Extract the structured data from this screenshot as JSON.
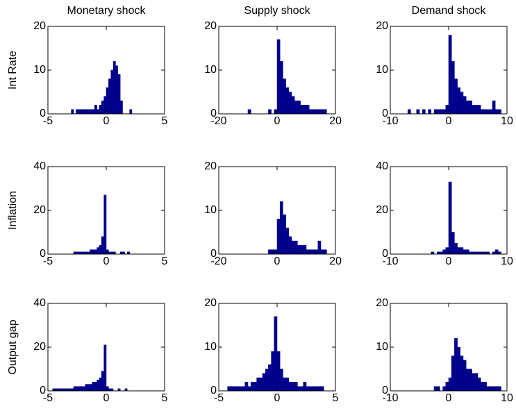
{
  "chart_data": [
    {
      "type": "histogram",
      "title": "Monetary shock",
      "ylabel": "Int Rate",
      "color": "#00008b",
      "bins": [
        -3,
        -2.8,
        -2.6,
        -2.4,
        -2.2,
        -2,
        -1.8,
        -1.6,
        -1.4,
        -1.2,
        -1,
        -0.8,
        -0.6,
        -0.4,
        -0.2,
        0,
        0.2,
        0.4,
        0.6,
        0.8,
        1,
        1.2,
        1.4,
        1.6,
        1.8,
        2,
        2.2,
        2.4
      ],
      "values": [
        1,
        0,
        1,
        1,
        1,
        1,
        1,
        1,
        1,
        1,
        2,
        1,
        2,
        3,
        4,
        6,
        8,
        10,
        12,
        11,
        9,
        3,
        0,
        0,
        0,
        1,
        0
      ],
      "xlim": [
        -5,
        5
      ],
      "xticks": [
        -5,
        0,
        5
      ],
      "ylim": [
        0,
        20
      ],
      "yticks": [
        0,
        10,
        20
      ]
    },
    {
      "type": "histogram",
      "title": "Supply shock",
      "color": "#00008b",
      "bins": [
        -10,
        -9,
        -8,
        -7,
        -6,
        -5,
        -4,
        -3,
        -2,
        -1,
        0,
        1,
        2,
        3,
        4,
        5,
        6,
        7,
        8,
        9,
        10,
        11,
        12,
        13,
        14,
        15,
        16,
        17
      ],
      "values": [
        1,
        0,
        0,
        0,
        0,
        0,
        0,
        1,
        0,
        1,
        17,
        12,
        8,
        6,
        5,
        4,
        3,
        3,
        2,
        2,
        2,
        1,
        1,
        1,
        1,
        1,
        1
      ],
      "xlim": [
        -20,
        20
      ],
      "xticks": [
        -20,
        0,
        20
      ],
      "ylim": [
        0,
        20
      ],
      "yticks": [
        0,
        10,
        20
      ]
    },
    {
      "type": "histogram",
      "title": "Demand shock",
      "color": "#00008b",
      "bins": [
        -7,
        -6.5,
        -6,
        -5.5,
        -5,
        -4.5,
        -4,
        -3.5,
        -3,
        -2.5,
        -2,
        -1.5,
        -1,
        -0.5,
        0,
        0.5,
        1,
        1.5,
        2,
        2.5,
        3,
        3.5,
        4,
        4.5,
        5,
        5.5,
        6,
        6.5,
        7,
        7.5,
        8,
        8.5,
        9
      ],
      "values": [
        1,
        0,
        0,
        1,
        0,
        1,
        0,
        1,
        0,
        1,
        1,
        1,
        1,
        2,
        18,
        12,
        8,
        6,
        5,
        4,
        3,
        3,
        2,
        2,
        2,
        1,
        1,
        1,
        1,
        3,
        1,
        1
      ],
      "xlim": [
        -10,
        10
      ],
      "xticks": [
        -10,
        0,
        10
      ],
      "ylim": [
        0,
        20
      ],
      "yticks": [
        0,
        10,
        20
      ]
    },
    {
      "type": "histogram",
      "ylabel": "Inflation",
      "color": "#00008b",
      "bins": [
        -2.8,
        -2.6,
        -2.4,
        -2.2,
        -2,
        -1.8,
        -1.6,
        -1.4,
        -1.2,
        -1,
        -0.8,
        -0.6,
        -0.4,
        -0.2,
        0,
        0.2,
        0.4,
        0.6,
        0.8,
        1,
        1.2,
        1.4,
        1.6,
        1.8,
        2
      ],
      "values": [
        1,
        1,
        1,
        1,
        1,
        1,
        1,
        2,
        2,
        2,
        3,
        4,
        8,
        27,
        2,
        1,
        1,
        1,
        0,
        0,
        1,
        1,
        0,
        1
      ],
      "xlim": [
        -5,
        5
      ],
      "xticks": [
        -5,
        0,
        5
      ],
      "ylim": [
        0,
        40
      ],
      "yticks": [
        0,
        20,
        40
      ]
    },
    {
      "type": "histogram",
      "color": "#00008b",
      "bins": [
        -3,
        -2,
        -1,
        0,
        1,
        2,
        3,
        4,
        5,
        6,
        7,
        8,
        9,
        10,
        11,
        12,
        13,
        14,
        15,
        16,
        17
      ],
      "values": [
        1,
        1,
        1,
        8,
        12,
        9,
        6,
        4,
        3,
        3,
        2,
        2,
        2,
        1,
        1,
        1,
        1,
        3,
        1,
        1
      ],
      "xlim": [
        -20,
        20
      ],
      "xticks": [
        -20,
        0,
        20
      ],
      "ylim": [
        0,
        20
      ],
      "yticks": [
        0,
        10,
        20
      ]
    },
    {
      "type": "histogram",
      "color": "#00008b",
      "bins": [
        -3,
        -2.5,
        -2,
        -1.5,
        -1,
        -0.5,
        0,
        0.5,
        1,
        1.5,
        2,
        2.5,
        3,
        3.5,
        4,
        4.5,
        5,
        5.5,
        6,
        6.5,
        7,
        7.5,
        8,
        8.5,
        9
      ],
      "values": [
        1,
        0,
        1,
        1,
        2,
        3,
        33,
        10,
        5,
        3,
        3,
        2,
        2,
        1,
        1,
        1,
        1,
        1,
        1,
        1,
        0,
        1,
        2,
        1
      ],
      "xlim": [
        -10,
        10
      ],
      "xticks": [
        -10,
        0,
        10
      ],
      "ylim": [
        0,
        40
      ],
      "yticks": [
        0,
        20,
        40
      ]
    },
    {
      "type": "histogram",
      "ylabel": "Output gap",
      "color": "#00008b",
      "bins": [
        -4.6,
        -4.4,
        -4.2,
        -4,
        -3.8,
        -3.6,
        -3.4,
        -3.2,
        -3,
        -2.8,
        -2.6,
        -2.4,
        -2.2,
        -2,
        -1.8,
        -1.6,
        -1.4,
        -1.2,
        -1,
        -0.8,
        -0.6,
        -0.4,
        -0.2,
        0,
        0.2,
        0.4,
        0.6,
        0.8,
        1,
        1.2,
        1.4,
        1.6,
        1.8,
        2
      ],
      "values": [
        1,
        1,
        1,
        1,
        1,
        1,
        1,
        1,
        1,
        2,
        2,
        2,
        2,
        2,
        3,
        3,
        3,
        4,
        4,
        5,
        6,
        9,
        21,
        2,
        1,
        1,
        0,
        0,
        1,
        0,
        0,
        1,
        0
      ],
      "xlim": [
        -5,
        5
      ],
      "xticks": [
        -5,
        0,
        5
      ],
      "ylim": [
        0,
        40
      ],
      "yticks": [
        0,
        20,
        40
      ]
    },
    {
      "type": "histogram",
      "color": "#00008b",
      "bins": [
        -4.25,
        -4,
        -3.75,
        -3.5,
        -3.25,
        -3,
        -2.75,
        -2.5,
        -2.25,
        -2,
        -1.75,
        -1.5,
        -1.25,
        -1,
        -0.75,
        -0.5,
        -0.25,
        0,
        0.25,
        0.5,
        0.75,
        1,
        1.25,
        1.5,
        1.75,
        2,
        2.25,
        2.5,
        2.75,
        3,
        3.25,
        3.5,
        3.75,
        4
      ],
      "values": [
        1,
        1,
        1,
        1,
        1,
        1,
        2,
        1,
        2,
        2,
        3,
        3,
        4,
        5,
        6,
        9,
        17,
        9,
        5,
        3,
        3,
        2,
        2,
        2,
        1,
        1,
        2,
        1,
        1,
        1,
        1,
        1,
        1
      ],
      "xlim": [
        -5,
        5
      ],
      "xticks": [
        -5,
        0,
        5
      ],
      "ylim": [
        0,
        20
      ],
      "yticks": [
        0,
        10,
        20
      ]
    },
    {
      "type": "histogram",
      "color": "#00008b",
      "bins": [
        -2.5,
        -2,
        -1.5,
        -1,
        -0.5,
        0,
        0.5,
        1,
        1.5,
        2,
        2.5,
        3,
        3.5,
        4,
        4.5,
        5,
        5.5,
        6,
        6.5,
        7,
        7.5,
        8,
        8.5,
        9
      ],
      "values": [
        1,
        1,
        0,
        1,
        2,
        3,
        8,
        12,
        10,
        8,
        7,
        5,
        5,
        4,
        4,
        3,
        2,
        2,
        1,
        1,
        1,
        1,
        1
      ],
      "xlim": [
        -10,
        10
      ],
      "xticks": [
        -10,
        0,
        10
      ],
      "ylim": [
        0,
        20
      ],
      "yticks": [
        0,
        10,
        20
      ]
    }
  ]
}
